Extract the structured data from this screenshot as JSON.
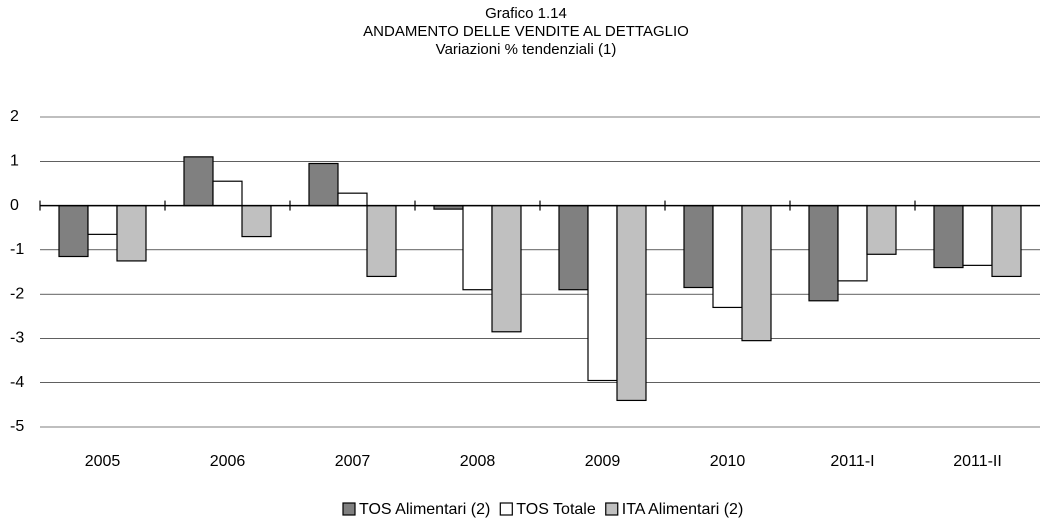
{
  "chart_data": {
    "type": "bar",
    "title": [
      "Grafico 1.14",
      "ANDAMENTO DELLE VENDITE AL DETTAGLIO",
      "Variazioni % tendenziali (1)"
    ],
    "categories": [
      "2005",
      "2006",
      "2007",
      "2008",
      "2009",
      "2010",
      "2011-I",
      "2011-II"
    ],
    "series": [
      {
        "name": "TOS Alimentari (2)",
        "color": "#808080",
        "values": [
          -1.15,
          1.1,
          0.95,
          -0.08,
          -1.9,
          -1.85,
          -2.15,
          -1.4
        ]
      },
      {
        "name": "TOS Totale",
        "color": "#ffffff",
        "values": [
          -0.65,
          0.55,
          0.28,
          -1.9,
          -3.95,
          -2.3,
          -1.7,
          -1.35
        ]
      },
      {
        "name": "ITA Alimentari (2)",
        "color": "#c0c0c0",
        "values": [
          -1.25,
          -0.7,
          -1.6,
          -2.85,
          -4.4,
          -3.05,
          -1.1,
          -1.6
        ]
      }
    ],
    "ylim": [
      -5,
      2
    ],
    "yticks": [
      -5,
      -4,
      -3,
      -2,
      -1,
      0,
      1,
      2
    ],
    "grid": true,
    "legend": "bottom"
  }
}
